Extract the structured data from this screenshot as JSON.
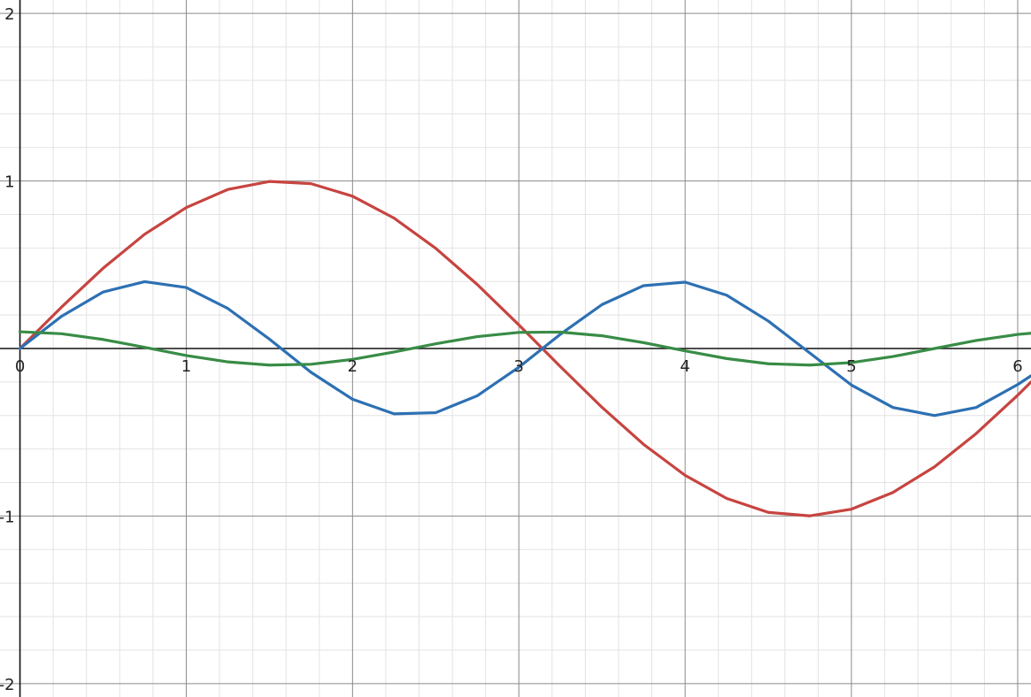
{
  "chart_data": {
    "type": "line",
    "xlim": [
      -0.12,
      6.08
    ],
    "ylim": [
      -2.08,
      2.08
    ],
    "grid": true,
    "x_ticks": [
      {
        "value": 0,
        "label": "0"
      },
      {
        "value": 1,
        "label": "1"
      },
      {
        "value": 2,
        "label": "2"
      },
      {
        "value": 3,
        "label": "3"
      },
      {
        "value": 4,
        "label": "4"
      },
      {
        "value": 5,
        "label": "5"
      },
      {
        "value": 6,
        "label": "6"
      }
    ],
    "y_ticks": [
      {
        "value": 2,
        "label": "2"
      },
      {
        "value": 1,
        "label": "1"
      },
      {
        "value": -1,
        "label": "-1"
      },
      {
        "value": -2,
        "label": "-2"
      }
    ],
    "x": [
      0,
      0.25,
      0.5,
      0.75,
      1,
      1.25,
      1.5,
      1.75,
      2,
      2.25,
      2.5,
      2.75,
      3,
      3.25,
      3.5,
      3.75,
      4,
      4.25,
      4.5,
      4.75,
      5,
      5.25,
      5.5,
      5.75,
      6,
      6.08
    ],
    "series": [
      {
        "color": "#c74440",
        "values": [
          0,
          0.247,
          0.479,
          0.682,
          0.841,
          0.949,
          0.997,
          0.984,
          0.909,
          0.778,
          0.598,
          0.382,
          0.141,
          -0.108,
          -0.351,
          -0.572,
          -0.757,
          -0.895,
          -0.978,
          -0.999,
          -0.959,
          -0.859,
          -0.706,
          -0.508,
          -0.279,
          -0.2
        ]
      },
      {
        "color": "#2d70b3",
        "values": [
          0,
          0.192,
          0.337,
          0.399,
          0.364,
          0.239,
          0.056,
          -0.142,
          -0.303,
          -0.39,
          -0.383,
          -0.282,
          -0.112,
          0.085,
          0.262,
          0.375,
          0.396,
          0.318,
          0.164,
          -0.027,
          -0.218,
          -0.352,
          -0.4,
          -0.352,
          -0.215,
          -0.163
        ]
      },
      {
        "color": "#388c46",
        "values": [
          0.1,
          0.088,
          0.054,
          0.007,
          -0.042,
          -0.08,
          -0.099,
          -0.094,
          -0.065,
          -0.021,
          0.028,
          0.071,
          0.096,
          0.098,
          0.076,
          0.035,
          -0.014,
          -0.06,
          -0.091,
          -0.099,
          -0.084,
          -0.048,
          0.0,
          0.048,
          0.084,
          0.091
        ]
      }
    ]
  }
}
